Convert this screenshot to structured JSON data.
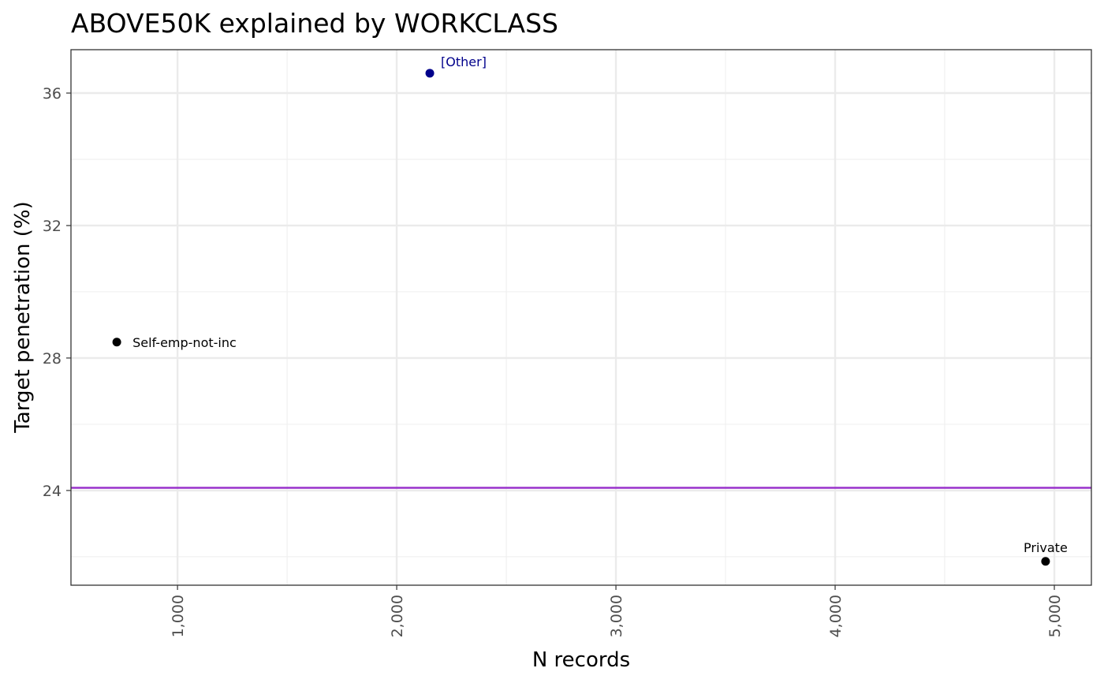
{
  "chart_data": {
    "type": "scatter",
    "title": "ABOVE50K explained by WORKCLASS",
    "x_label": "N records",
    "y_label": "Target penetration  (%)",
    "x": [
      2151,
      723,
      4960
    ],
    "values": [
      36.6,
      28.48,
      21.86
    ],
    "labels": [
      "[Other]",
      "Self-emp-not-inc",
      "Private"
    ],
    "colors": [
      "#00008b",
      "#000000",
      "#000000"
    ],
    "reference_line": {
      "value": 24.08,
      "color": "#9932cc"
    },
    "xlim": [
      514,
      5169
    ],
    "ylim": [
      21.14,
      37.31
    ],
    "xticks": [
      {
        "value": 1000,
        "label": "1,000"
      },
      {
        "value": 2000,
        "label": "2,000"
      },
      {
        "value": 3000,
        "label": "3,000"
      },
      {
        "value": 4000,
        "label": "4,000"
      },
      {
        "value": 5000,
        "label": "5,000"
      }
    ],
    "yticks": [
      24,
      28,
      32,
      36
    ],
    "x_minor_ticks": [
      1500,
      2500,
      3500,
      4500
    ],
    "y_minor_ticks": [
      22,
      26,
      30,
      34
    ],
    "grid": true
  }
}
